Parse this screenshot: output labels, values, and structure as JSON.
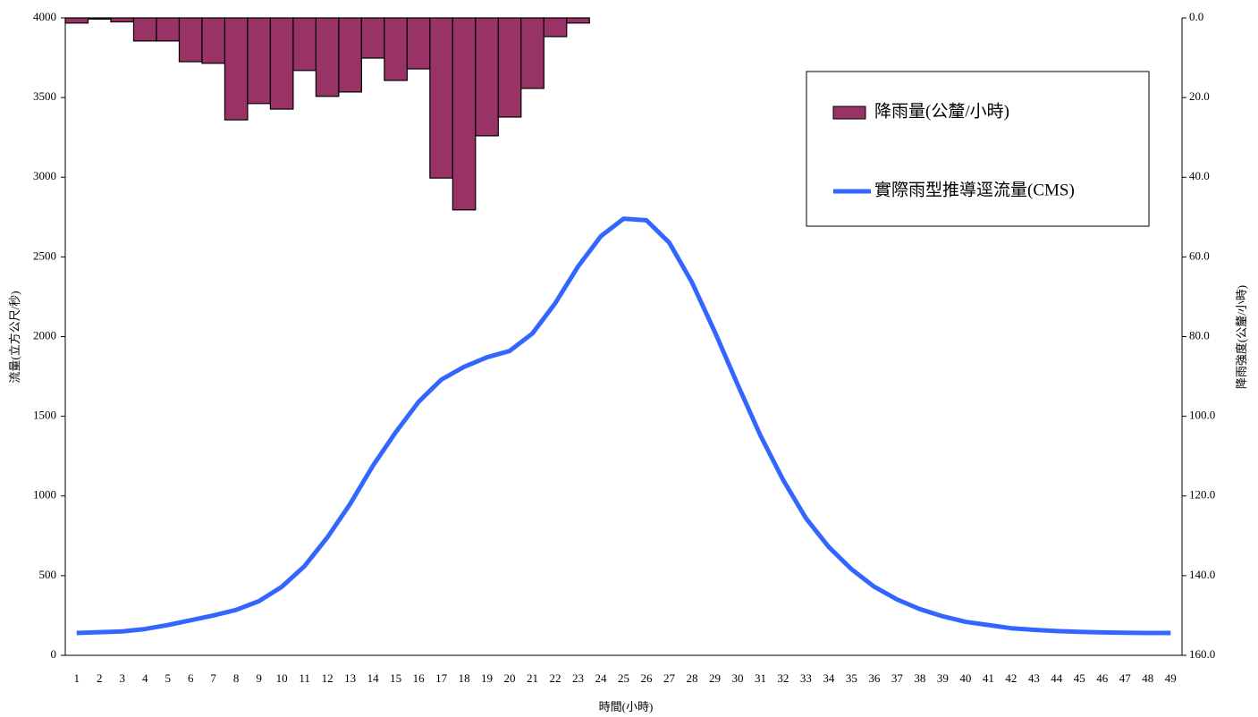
{
  "chart_data": {
    "type": "combo",
    "xlabel": "時間(小時)",
    "ylabel": "流量(立方公尺/秒)",
    "y2label": "降雨強度(公釐/小時)",
    "categories": [
      "1",
      "2",
      "3",
      "4",
      "5",
      "6",
      "7",
      "8",
      "9",
      "10",
      "11",
      "12",
      "13",
      "14",
      "15",
      "16",
      "17",
      "18",
      "19",
      "20",
      "21",
      "22",
      "23",
      "24",
      "25",
      "26",
      "27",
      "28",
      "29",
      "30",
      "31",
      "32",
      "33",
      "34",
      "35",
      "36",
      "37",
      "38",
      "39",
      "40",
      "41",
      "42",
      "43",
      "44",
      "45",
      "46",
      "47",
      "48",
      "49"
    ],
    "series": [
      {
        "name": "降雨量(公釐/小時)",
        "type": "bar",
        "axis": "y2",
        "color": "#993366",
        "values": [
          1.3,
          0.3,
          1.0,
          5.8,
          5.8,
          11.0,
          11.4,
          25.6,
          21.5,
          22.9,
          13.2,
          19.7,
          18.6,
          10.1,
          15.7,
          12.8,
          40.2,
          48.2,
          29.6,
          24.9,
          17.7,
          4.7,
          1.3,
          0,
          0,
          0,
          0,
          0,
          0,
          0,
          0,
          0,
          0,
          0,
          0,
          0,
          0,
          0,
          0,
          0,
          0,
          0,
          0,
          0,
          0,
          0,
          0,
          0,
          0
        ]
      },
      {
        "name": "實際雨型推導逕流量(CMS)",
        "type": "line",
        "color": "#3366ff",
        "values": [
          140,
          145,
          150,
          165,
          190,
          220,
          250,
          285,
          340,
          430,
          560,
          740,
          950,
          1190,
          1400,
          1590,
          1730,
          1810,
          1870,
          1910,
          2020,
          2210,
          2440,
          2630,
          2740,
          2730,
          2590,
          2340,
          2030,
          1700,
          1380,
          1100,
          860,
          680,
          540,
          430,
          350,
          290,
          245,
          210,
          190,
          170,
          160,
          152,
          147,
          144,
          142,
          140,
          140
        ]
      }
    ],
    "ylim": [
      0,
      4000
    ],
    "yticks": [
      0,
      500,
      1000,
      1500,
      2000,
      2500,
      3000,
      3500,
      4000
    ],
    "y2lim": [
      160,
      0
    ],
    "y2ticks": [
      {
        "value": 0,
        "label": "0.0"
      },
      {
        "value": 20,
        "label": "20.0"
      },
      {
        "value": 40,
        "label": "40.0"
      },
      {
        "value": 60,
        "label": "60.0"
      },
      {
        "value": 80,
        "label": "80.0"
      },
      {
        "value": 100,
        "label": "100.0"
      },
      {
        "value": 120,
        "label": "120.0"
      },
      {
        "value": 140,
        "label": "140.0"
      },
      {
        "value": 160,
        "label": "160.0"
      }
    ],
    "legend": "upper right"
  }
}
